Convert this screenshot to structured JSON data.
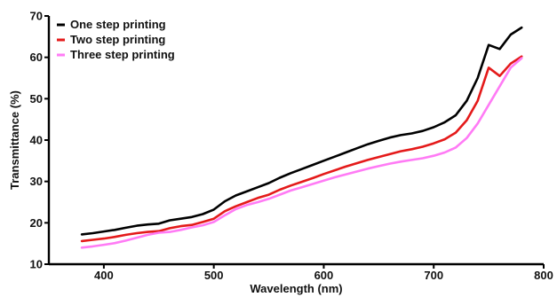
{
  "chart_data": {
    "type": "line",
    "title": "",
    "xlabel": "Wavelength (nm)",
    "ylabel": "Transmittance (%)",
    "xlim": [
      350,
      800
    ],
    "ylim": [
      10,
      70
    ],
    "xticks": [
      400,
      500,
      600,
      700,
      800
    ],
    "yticks": [
      10,
      20,
      30,
      40,
      50,
      60,
      70
    ],
    "grid": false,
    "legend_position": "top-left",
    "x": [
      380,
      390,
      400,
      410,
      420,
      430,
      440,
      450,
      460,
      470,
      480,
      490,
      500,
      510,
      520,
      530,
      540,
      550,
      560,
      570,
      580,
      590,
      600,
      610,
      620,
      630,
      640,
      650,
      660,
      670,
      680,
      690,
      700,
      710,
      720,
      730,
      740,
      750,
      760,
      770,
      780
    ],
    "series": [
      {
        "name": "One step printing",
        "color": "#000000",
        "values": [
          17.2,
          17.5,
          17.9,
          18.3,
          18.8,
          19.3,
          19.6,
          19.8,
          20.6,
          21.0,
          21.4,
          22.1,
          23.2,
          25.2,
          26.6,
          27.6,
          28.6,
          29.6,
          30.9,
          32.0,
          33.0,
          34.0,
          35.0,
          36.0,
          37.0,
          38.0,
          39.0,
          39.8,
          40.6,
          41.2,
          41.6,
          42.2,
          43.1,
          44.3,
          46.0,
          49.5,
          55.0,
          63.0,
          62.0,
          65.5,
          67.2
        ]
      },
      {
        "name": "Two step printing",
        "color": "#e41a1a",
        "values": [
          15.6,
          15.9,
          16.2,
          16.6,
          17.1,
          17.5,
          17.8,
          18.0,
          18.7,
          19.2,
          19.5,
          20.2,
          21.0,
          22.8,
          24.0,
          25.0,
          26.0,
          26.8,
          28.0,
          29.0,
          29.9,
          30.8,
          31.8,
          32.7,
          33.6,
          34.4,
          35.2,
          35.9,
          36.6,
          37.3,
          37.8,
          38.4,
          39.2,
          40.2,
          41.8,
          44.8,
          49.5,
          57.5,
          55.5,
          58.5,
          60.2
        ]
      },
      {
        "name": "Three step printing",
        "color": "#ff7bf5",
        "values": [
          14.0,
          14.3,
          14.7,
          15.1,
          15.7,
          16.4,
          17.1,
          17.6,
          17.8,
          18.3,
          18.9,
          19.4,
          20.2,
          21.8,
          23.3,
          24.3,
          25.0,
          25.8,
          26.8,
          27.8,
          28.6,
          29.4,
          30.2,
          31.0,
          31.7,
          32.4,
          33.1,
          33.7,
          34.3,
          34.8,
          35.2,
          35.6,
          36.2,
          37.0,
          38.2,
          40.5,
          44.0,
          48.5,
          53.0,
          57.5,
          59.8
        ]
      }
    ]
  }
}
